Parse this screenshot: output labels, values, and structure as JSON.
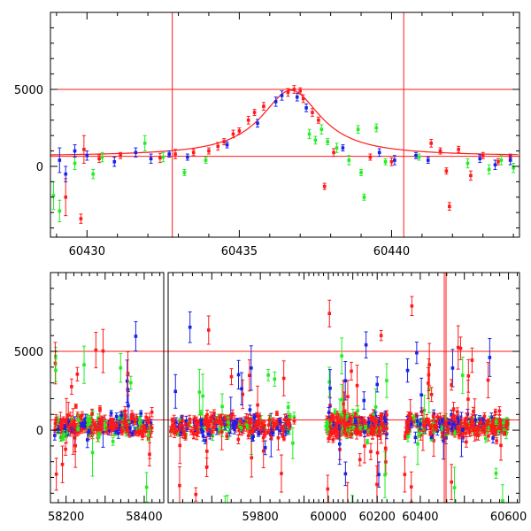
{
  "colors": {
    "red": "#ff1a1a",
    "green": "#22ee22",
    "blue": "#1a22e8",
    "frame": "#000000",
    "model": "#ff1a1a"
  },
  "chart_data": [
    {
      "type": "scatter",
      "panel": "top",
      "x_range": [
        60428.8,
        60444.2
      ],
      "y_range": [
        -4600,
        10000
      ],
      "x_ticks": [
        60430,
        60435,
        60440
      ],
      "x_tick_labels": [
        "60430",
        "60435",
        "60440"
      ],
      "y_ticks": [
        0,
        5000
      ],
      "y_tick_labels": [
        "0",
        "5000"
      ],
      "hlines": [
        5000,
        650
      ],
      "vlines": [
        60432.8,
        60440.4
      ],
      "model_curve": {
        "baseline": 650,
        "peak_x": 60436.7,
        "peak_y": 4950,
        "width": 1.2
      },
      "series": [
        {
          "color": "red",
          "points": [
            [
              60429.3,
              -2000,
              1200
            ],
            [
              60429.8,
              -3400,
              300
            ],
            [
              60429.9,
              1100,
              900
            ],
            [
              60430.4,
              500,
              250
            ],
            [
              60431.1,
              700,
              200
            ],
            [
              60432.4,
              550,
              300
            ],
            [
              60432.9,
              800,
              300
            ],
            [
              60433.5,
              900,
              200
            ],
            [
              60434.0,
              1000,
              200
            ],
            [
              60434.3,
              1300,
              250
            ],
            [
              60434.5,
              1600,
              200
            ],
            [
              60434.8,
              2100,
              250
            ],
            [
              60435.0,
              2300,
              200
            ],
            [
              60435.3,
              3000,
              250
            ],
            [
              60435.5,
              3500,
              200
            ],
            [
              60435.8,
              3900,
              250
            ],
            [
              60436.6,
              4800,
              250
            ],
            [
              60436.8,
              5000,
              250
            ],
            [
              60437.0,
              4900,
              200
            ],
            [
              60437.1,
              4400,
              250
            ],
            [
              60437.4,
              3500,
              250
            ],
            [
              60437.6,
              3000,
              200
            ],
            [
              60437.8,
              -1300,
              200
            ],
            [
              60438.1,
              900,
              250
            ],
            [
              60439.3,
              600,
              200
            ],
            [
              60440.0,
              300,
              250
            ],
            [
              60441.3,
              1500,
              250
            ],
            [
              60441.6,
              1000,
              200
            ],
            [
              60441.8,
              -300,
              200
            ],
            [
              60441.9,
              -2600,
              250
            ],
            [
              60442.2,
              1100,
              200
            ],
            [
              60442.6,
              -600,
              300
            ],
            [
              60443.0,
              700,
              200
            ],
            [
              60443.5,
              300,
              200
            ],
            [
              60443.9,
              600,
              200
            ]
          ]
        },
        {
          "color": "green",
          "points": [
            [
              60428.9,
              -1900,
              900
            ],
            [
              60429.1,
              -2900,
              700
            ],
            [
              60429.6,
              200,
              400
            ],
            [
              60430.2,
              -500,
              300
            ],
            [
              60430.5,
              600,
              300
            ],
            [
              60431.9,
              1500,
              500
            ],
            [
              60432.5,
              600,
              300
            ],
            [
              60433.2,
              -400,
              200
            ],
            [
              60433.9,
              400,
              200
            ],
            [
              60437.3,
              2100,
              300
            ],
            [
              60437.5,
              1700,
              250
            ],
            [
              60437.7,
              2400,
              300
            ],
            [
              60437.9,
              1600,
              200
            ],
            [
              60438.2,
              1200,
              300
            ],
            [
              60438.6,
              400,
              300
            ],
            [
              60438.9,
              2400,
              250
            ],
            [
              60439.0,
              -400,
              200
            ],
            [
              60439.1,
              -2000,
              200
            ],
            [
              60439.5,
              2500,
              250
            ],
            [
              60439.8,
              300,
              200
            ],
            [
              60440.9,
              600,
              200
            ],
            [
              60442.5,
              200,
              300
            ],
            [
              60443.2,
              -200,
              300
            ],
            [
              60443.6,
              400,
              300
            ],
            [
              60444.0,
              -100,
              300
            ]
          ]
        },
        {
          "color": "blue",
          "points": [
            [
              60429.1,
              400,
              800
            ],
            [
              60429.3,
              -500,
              500
            ],
            [
              60429.6,
              1000,
              400
            ],
            [
              60430.0,
              700,
              300
            ],
            [
              60430.9,
              300,
              300
            ],
            [
              60431.6,
              900,
              300
            ],
            [
              60432.1,
              500,
              300
            ],
            [
              60432.7,
              800,
              200
            ],
            [
              60433.3,
              600,
              200
            ],
            [
              60434.6,
              1400,
              200
            ],
            [
              60435.6,
              2800,
              250
            ],
            [
              60436.2,
              4200,
              300
            ],
            [
              60436.4,
              4600,
              300
            ],
            [
              60436.9,
              4500,
              250
            ],
            [
              60437.2,
              3800,
              250
            ],
            [
              60438.4,
              1200,
              200
            ],
            [
              60439.6,
              900,
              250
            ],
            [
              60440.1,
              400,
              300
            ],
            [
              60440.8,
              700,
              200
            ],
            [
              60441.2,
              400,
              200
            ],
            [
              60442.9,
              500,
              250
            ],
            [
              60443.4,
              100,
              300
            ],
            [
              60443.9,
              400,
              300
            ]
          ]
        }
      ]
    },
    {
      "type": "scatter",
      "panel": "bottom",
      "x_ticks": [
        58200,
        58400,
        59800,
        60000,
        60200,
        60400,
        60600
      ],
      "x_tick_labels": [
        "58200",
        "58400",
        "59800",
        "60000",
        "60200",
        "60400",
        "60600"
      ],
      "y_ticks": [
        0,
        5000
      ],
      "y_tick_labels": [
        "0",
        "5000"
      ],
      "y_range": [
        -4600,
        10000
      ],
      "hlines": [
        5000,
        650
      ],
      "segments": [
        {
          "x_range": [
            58160,
            58450
          ],
          "data_range": [
            58170,
            58420
          ]
        },
        {
          "x_range": [
            59610,
            59880
          ],
          "data_range": [
            59615,
            59870
          ]
        },
        {
          "x_range": [
            59880,
            60250
          ],
          "data_range": [
            59990,
            60240
          ]
        },
        {
          "x_range": [
            60330,
            60625
          ],
          "data_range": [
            60360,
            60600
          ]
        }
      ],
      "scatter_sigma": 350,
      "outlier_fraction": 0.12
    }
  ]
}
